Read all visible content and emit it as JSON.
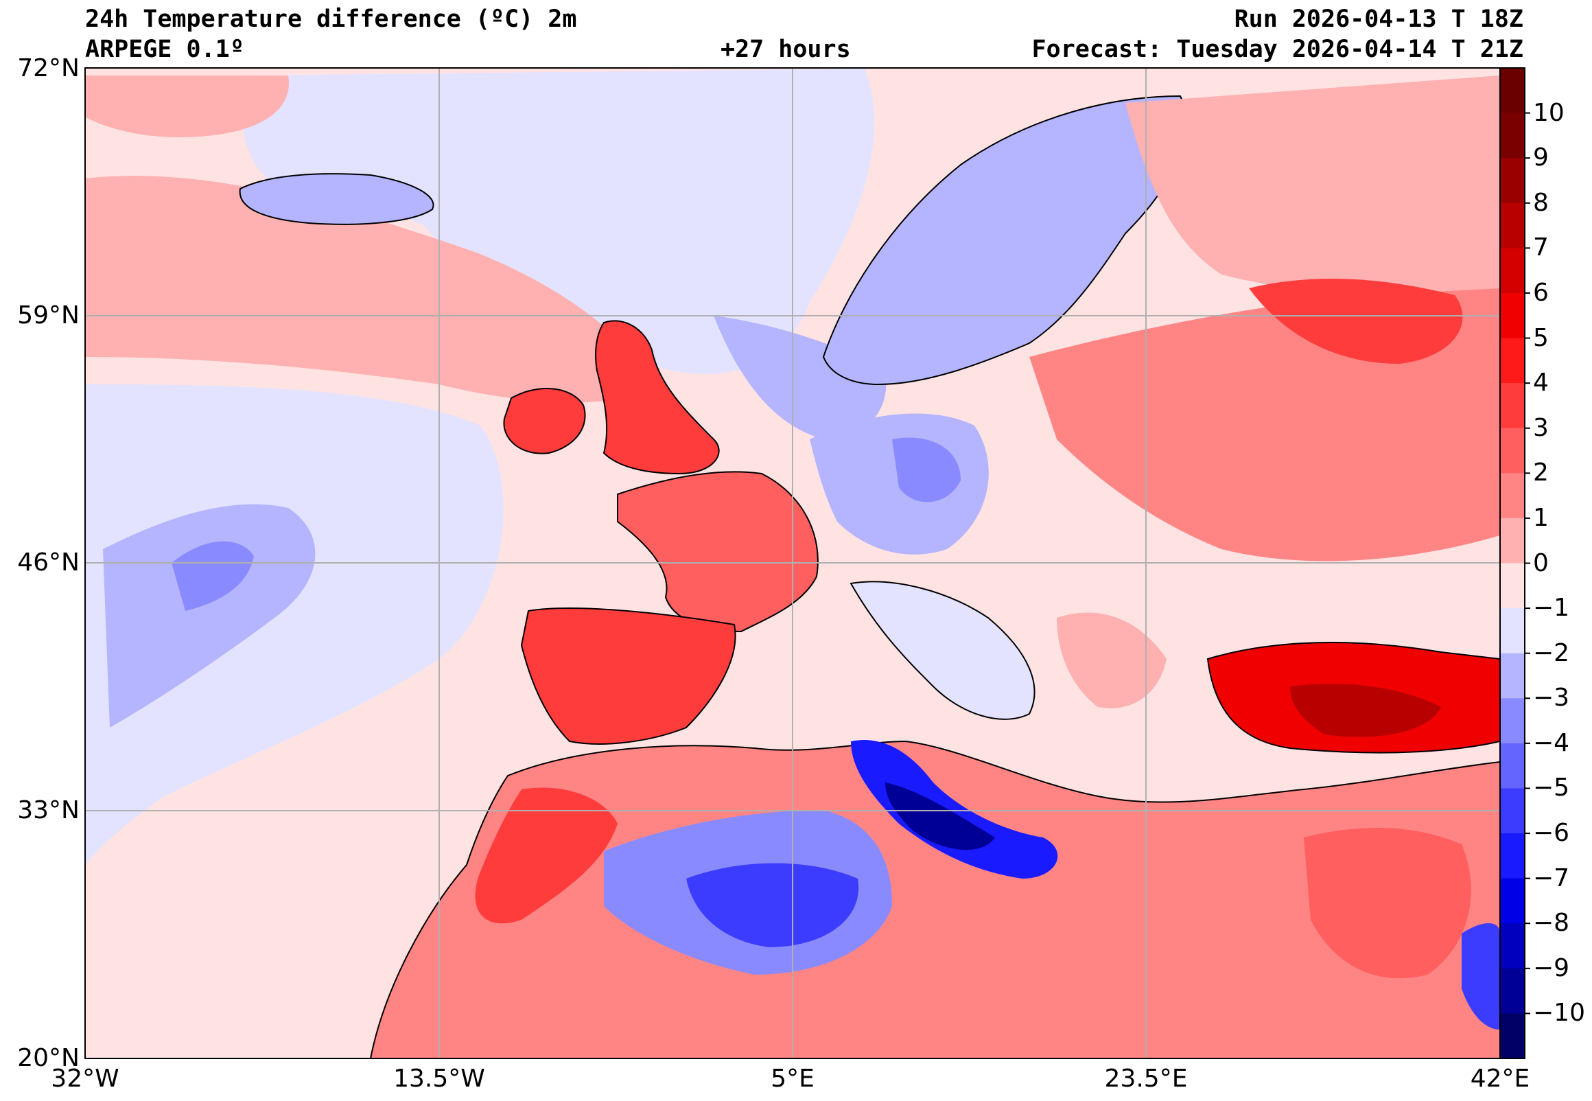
{
  "header": {
    "title": "24h Temperature difference (ºC) 2m",
    "model": "ARPEGE 0.1º",
    "lead_time": "+27 hours",
    "run": "Run 2026-04-13 T 18Z",
    "forecast": "Forecast: Tuesday 2026-04-14 T 21Z"
  },
  "axes": {
    "lat_labels": [
      "72°N",
      "59°N",
      "46°N",
      "33°N",
      "20°N"
    ],
    "lon_labels": [
      "32°W",
      "13.5°W",
      "5°E",
      "23.5°E",
      "42°E"
    ]
  },
  "colorbar": {
    "labels": [
      "10",
      "9",
      "8",
      "7",
      "6",
      "5",
      "4",
      "3",
      "2",
      "1",
      "0",
      "−1",
      "−2",
      "−3",
      "−4",
      "−5",
      "−6",
      "−7",
      "−8",
      "−9",
      "−10"
    ],
    "colors": [
      "#7a0000",
      "#990000",
      "#b80000",
      "#d40000",
      "#f00000",
      "#ff1a1a",
      "#ff3c3c",
      "#ff5f5f",
      "#ff8585",
      "#ffb0b0",
      "#ffe3e3",
      "#e3e3ff",
      "#b4b4ff",
      "#8a8aff",
      "#6464ff",
      "#3c3cff",
      "#1a1aff",
      "#0000e6",
      "#0000bd",
      "#000096",
      "#000066"
    ]
  },
  "colors": {
    "warm_light": "#ffe3e3",
    "warm_mid": "#ff8585",
    "warm_strong": "#f00000",
    "cool_light": "#e3e3ff",
    "cool_mid": "#8a8aff",
    "cool_strong": "#1a1aff",
    "coast": "#000000",
    "grid": "#b0b0b0"
  }
}
